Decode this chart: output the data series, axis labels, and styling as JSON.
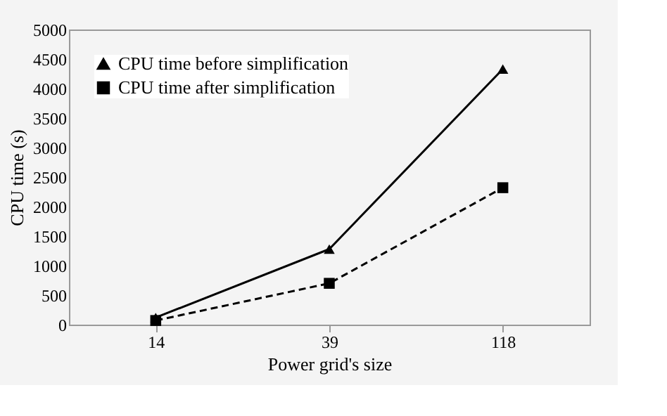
{
  "chart_data": {
    "type": "line",
    "xlabel": "Power grid's size",
    "ylabel": "CPU time (s)",
    "categories": [
      "14",
      "39",
      "118"
    ],
    "series": [
      {
        "name": "CPU time before simplification",
        "color": "#000000",
        "marker": "triangle",
        "line_style": "solid",
        "values": [
          120,
          1280,
          4330
        ]
      },
      {
        "name": "CPU time after simplification",
        "color": "#000000",
        "marker": "square",
        "line_style": "dashed",
        "values": [
          70,
          700,
          2320
        ]
      }
    ],
    "ylim": [
      0,
      5000
    ],
    "yticks": [
      0,
      500,
      1000,
      1500,
      2000,
      2500,
      3000,
      3500,
      4000,
      4500,
      5000
    ],
    "grid": false,
    "legend": "top left"
  }
}
